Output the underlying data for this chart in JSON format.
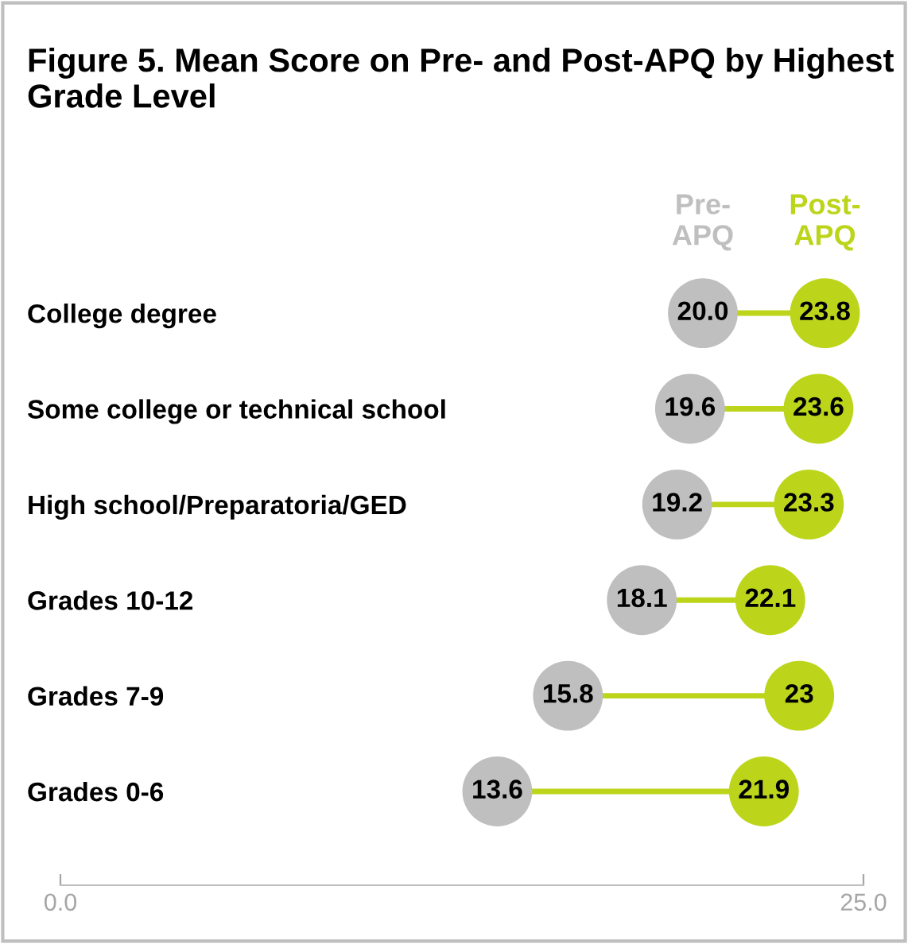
{
  "chart_data": {
    "type": "scatter",
    "title": "Figure 5. Mean Score on Pre- and Post-APQ by Highest Grade Level",
    "categories": [
      "College degree",
      "Some college or technical school",
      "High school/Preparatoria/GED",
      "Grades 10-12",
      "Grades 7-9",
      "Grades 0-6"
    ],
    "series": [
      {
        "name": "Pre-APQ",
        "color": "#bfbfbf",
        "values": [
          20.0,
          19.6,
          19.2,
          18.1,
          15.8,
          13.6
        ],
        "value_labels": [
          "20.0",
          "19.6",
          "19.2",
          "18.1",
          "15.8",
          "13.6"
        ]
      },
      {
        "name": "Post-APQ",
        "color": "#bcd51b",
        "values": [
          23.8,
          23.6,
          23.3,
          22.1,
          23,
          21.9
        ],
        "value_labels": [
          "23.8",
          "23.6",
          "23.3",
          "22.1",
          "23",
          "21.9"
        ]
      }
    ],
    "orientation": "horizontal",
    "xlim": [
      0,
      25
    ],
    "xticks": [
      {
        "value": 0,
        "label": "0.0"
      },
      {
        "value": 25,
        "label": "25.0"
      }
    ],
    "grid": false,
    "legend": false,
    "marker": "circle"
  }
}
